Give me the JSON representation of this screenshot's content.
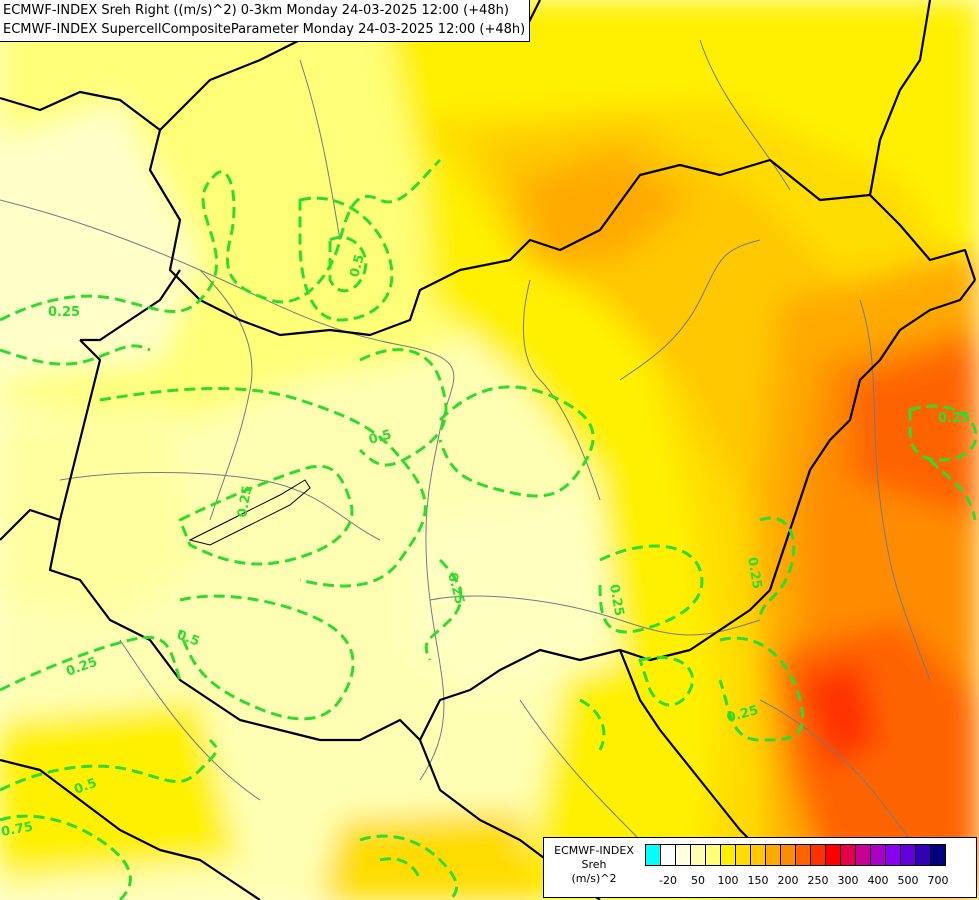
{
  "header": {
    "line1": "ECMWF-INDEX Sreh Right ((m/s)^2) 0-3km Monday 24-03-2025 12:00 (+48h)",
    "line2": "ECMWF-INDEX SupercellCompositeParameter Monday 24-03-2025 12:00 (+48h)"
  },
  "contour_labels": [
    "0.25",
    "0.5",
    "0.75"
  ],
  "legend": {
    "title": "ECMWF-INDEX",
    "variable": "Sreh",
    "unit": "(m/s)^2",
    "colors": [
      "#00ffff",
      "#ffffff",
      "#ffffe0",
      "#ffffb4",
      "#ffff78",
      "#fff000",
      "#ffdc00",
      "#ffc800",
      "#ffaa00",
      "#ff8c00",
      "#ff6400",
      "#ff3200",
      "#ff0000",
      "#e6004b",
      "#c80096",
      "#aa00c8",
      "#8c00f0",
      "#6400dc",
      "#3200b4",
      "#000080"
    ],
    "ticks": [
      "-20",
      "50",
      "100",
      "150",
      "200",
      "250",
      "300",
      "400",
      "500",
      "700"
    ]
  },
  "colors": {
    "contour": "#2edc2e",
    "border": "#000000",
    "river": "#6e7b8b"
  }
}
